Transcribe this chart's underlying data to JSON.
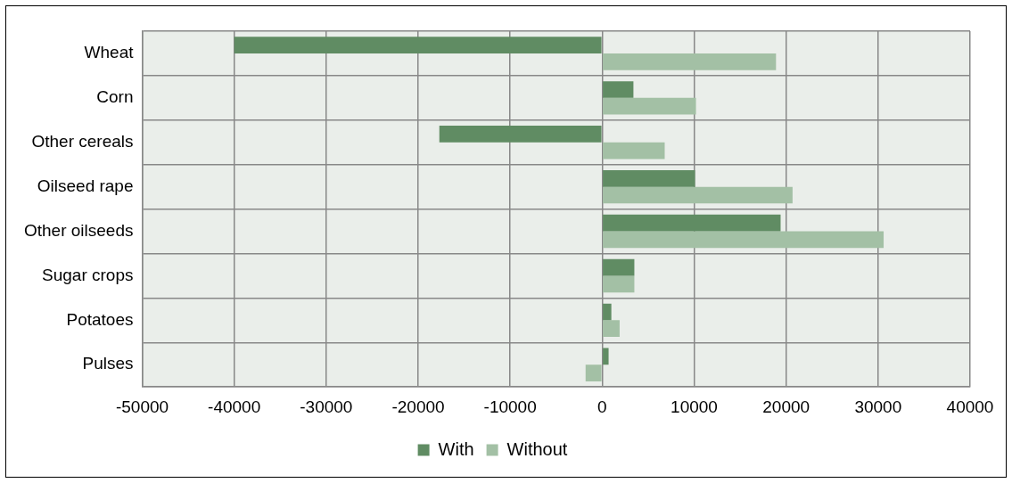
{
  "chart_data": {
    "type": "bar",
    "orientation": "horizontal",
    "categories": [
      "Wheat",
      "Corn",
      "Other cereals",
      "Oilseed rape",
      "Other oilseeds",
      "Sugar crops",
      "Potatoes",
      "Pulses"
    ],
    "series": [
      {
        "name": "With",
        "color": "#608c63",
        "values": [
          -40000,
          3400,
          -17700,
          10100,
          19400,
          3500,
          1000,
          700
        ]
      },
      {
        "name": "Without",
        "color": "#a3c0a5",
        "values": [
          18900,
          10200,
          6800,
          20700,
          30600,
          3500,
          1900,
          -1800
        ]
      }
    ],
    "xlim": [
      -50000,
      40000
    ],
    "xticks": [
      -50000,
      -40000,
      -30000,
      -20000,
      -10000,
      0,
      10000,
      20000,
      30000,
      40000
    ],
    "grid": true,
    "legend": "bottom"
  }
}
